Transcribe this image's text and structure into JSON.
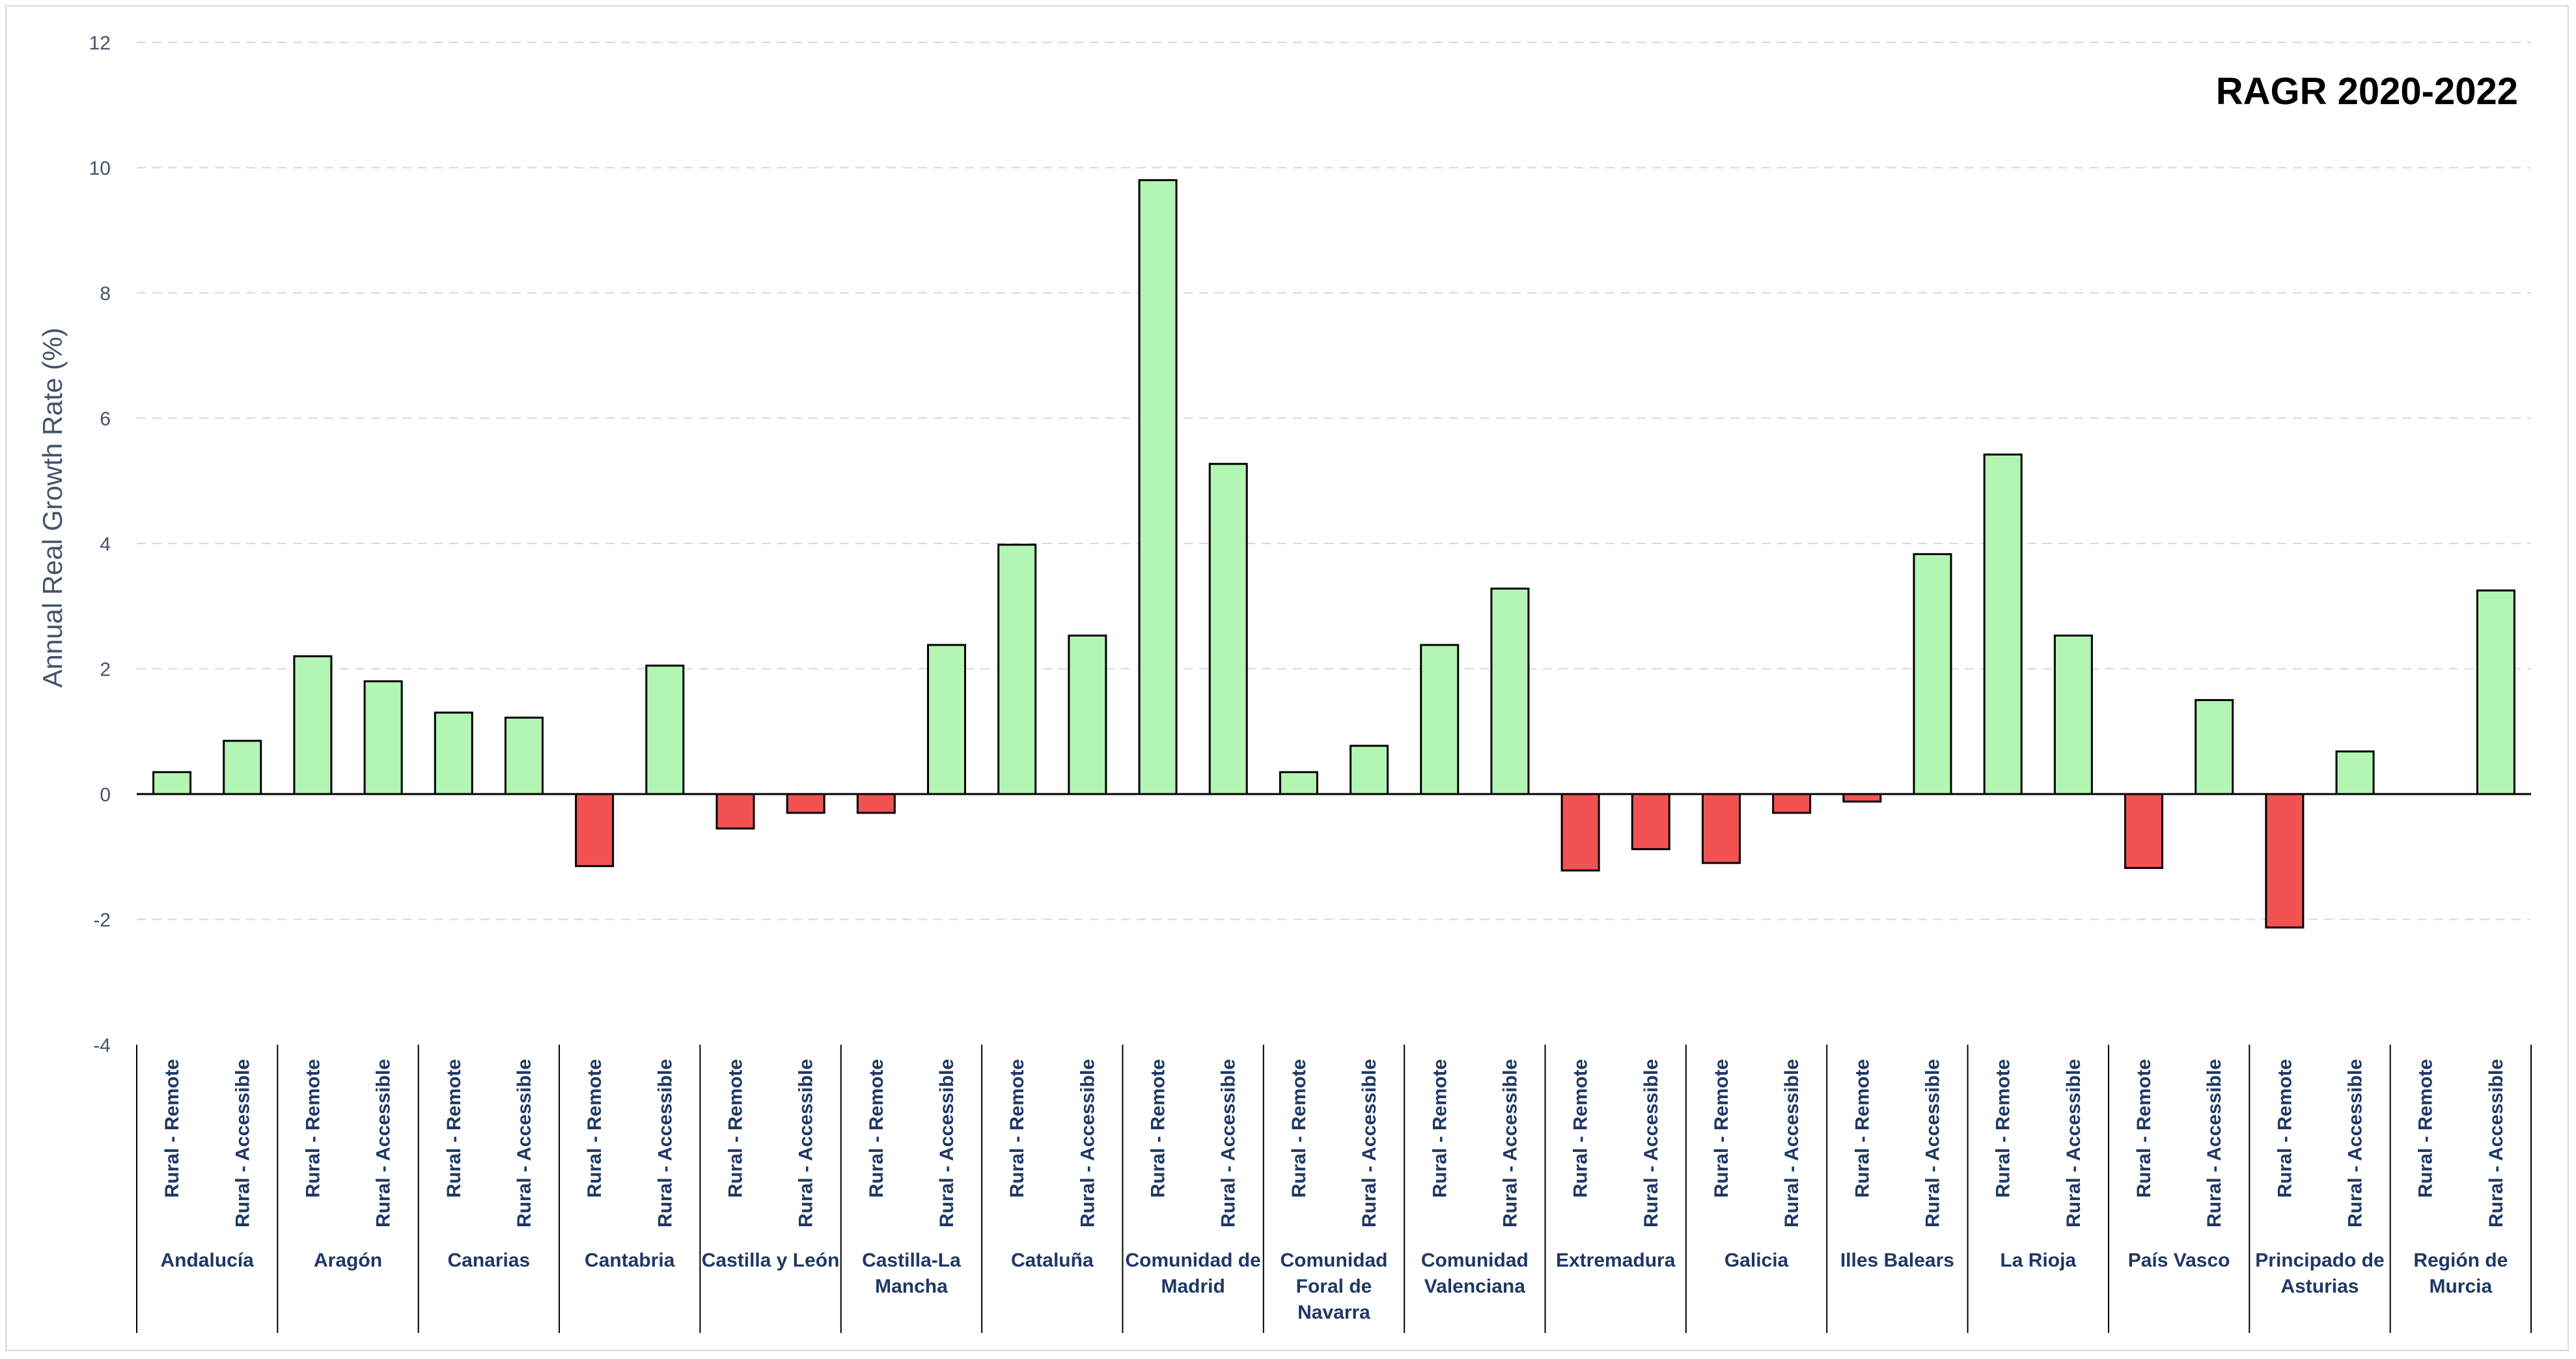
{
  "chart_data": {
    "type": "bar",
    "title": "RAGR 2020-2022",
    "ylabel": "Annual Real Growth Rate (%)",
    "xlabel": "",
    "ylim": [
      -4,
      12
    ],
    "yticks": [
      -4,
      -2,
      0,
      2,
      4,
      6,
      8,
      10,
      12
    ],
    "grid": true,
    "colors": {
      "positive": "#b3f5b3",
      "negative": "#f25252",
      "outline": "#000000"
    },
    "subcategories": [
      "Rural - Remote",
      "Rural - Accessible"
    ],
    "groups": [
      {
        "name": [
          "Andalucía"
        ],
        "values": [
          0.35,
          0.85
        ]
      },
      {
        "name": [
          "Aragón"
        ],
        "values": [
          2.2,
          1.8
        ]
      },
      {
        "name": [
          "Canarias"
        ],
        "values": [
          1.3,
          1.22
        ]
      },
      {
        "name": [
          "Cantabria"
        ],
        "values": [
          -1.15,
          2.05
        ]
      },
      {
        "name": [
          "Castilla y León"
        ],
        "values": [
          -0.55,
          -0.3
        ]
      },
      {
        "name": [
          "Castilla-La",
          "Mancha"
        ],
        "values": [
          -0.3,
          2.38
        ]
      },
      {
        "name": [
          "Cataluña"
        ],
        "values": [
          3.98,
          2.53
        ]
      },
      {
        "name": [
          "Comunidad de",
          "Madrid"
        ],
        "values": [
          9.8,
          5.27
        ]
      },
      {
        "name": [
          "Comunidad",
          "Foral de",
          "Navarra"
        ],
        "values": [
          0.35,
          0.77
        ]
      },
      {
        "name": [
          "Comunidad",
          "Valenciana"
        ],
        "values": [
          2.38,
          3.28
        ]
      },
      {
        "name": [
          "Extremadura"
        ],
        "values": [
          -1.22,
          -0.88
        ]
      },
      {
        "name": [
          "Galicia"
        ],
        "values": [
          -1.1,
          -0.3
        ]
      },
      {
        "name": [
          "Illes Balears"
        ],
        "values": [
          -0.12,
          3.83
        ]
      },
      {
        "name": [
          "La Rioja"
        ],
        "values": [
          5.42,
          2.53
        ]
      },
      {
        "name": [
          "País Vasco"
        ],
        "values": [
          -1.18,
          1.5
        ]
      },
      {
        "name": [
          "Principado de",
          "Asturias"
        ],
        "values": [
          -2.13,
          0.68
        ]
      },
      {
        "name": [
          "Región de",
          "Murcia"
        ],
        "values": [
          null,
          3.25
        ]
      }
    ]
  }
}
